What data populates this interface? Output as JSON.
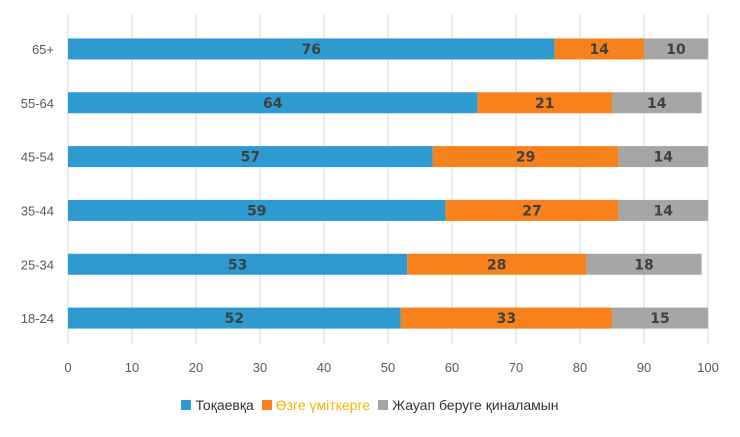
{
  "chart_data": {
    "type": "bar",
    "orientation": "horizontal",
    "stacked": true,
    "categories": [
      "18-24",
      "25-34",
      "35-44",
      "45-54",
      "55-64",
      "65+"
    ],
    "series": [
      {
        "name": "Тоқаевқа",
        "color": "#2E9AD0",
        "values": [
          52,
          53,
          59,
          57,
          64,
          76
        ]
      },
      {
        "name": "Өзге үміткерге",
        "color": "#F7811D",
        "label_color": "#F2B705",
        "values": [
          33,
          28,
          27,
          29,
          21,
          14
        ]
      },
      {
        "name": "Жауап беруге қиналамын",
        "color": "#A6A6A6",
        "values": [
          15,
          18,
          14,
          14,
          14,
          10
        ]
      }
    ],
    "xlim": [
      0,
      100
    ],
    "xticks": [
      0,
      10,
      20,
      30,
      40,
      50,
      60,
      70,
      80,
      90,
      100
    ],
    "grid": "vertical",
    "legend": "bottom",
    "data_labels": true,
    "title": "",
    "xlabel": "",
    "ylabel": ""
  }
}
